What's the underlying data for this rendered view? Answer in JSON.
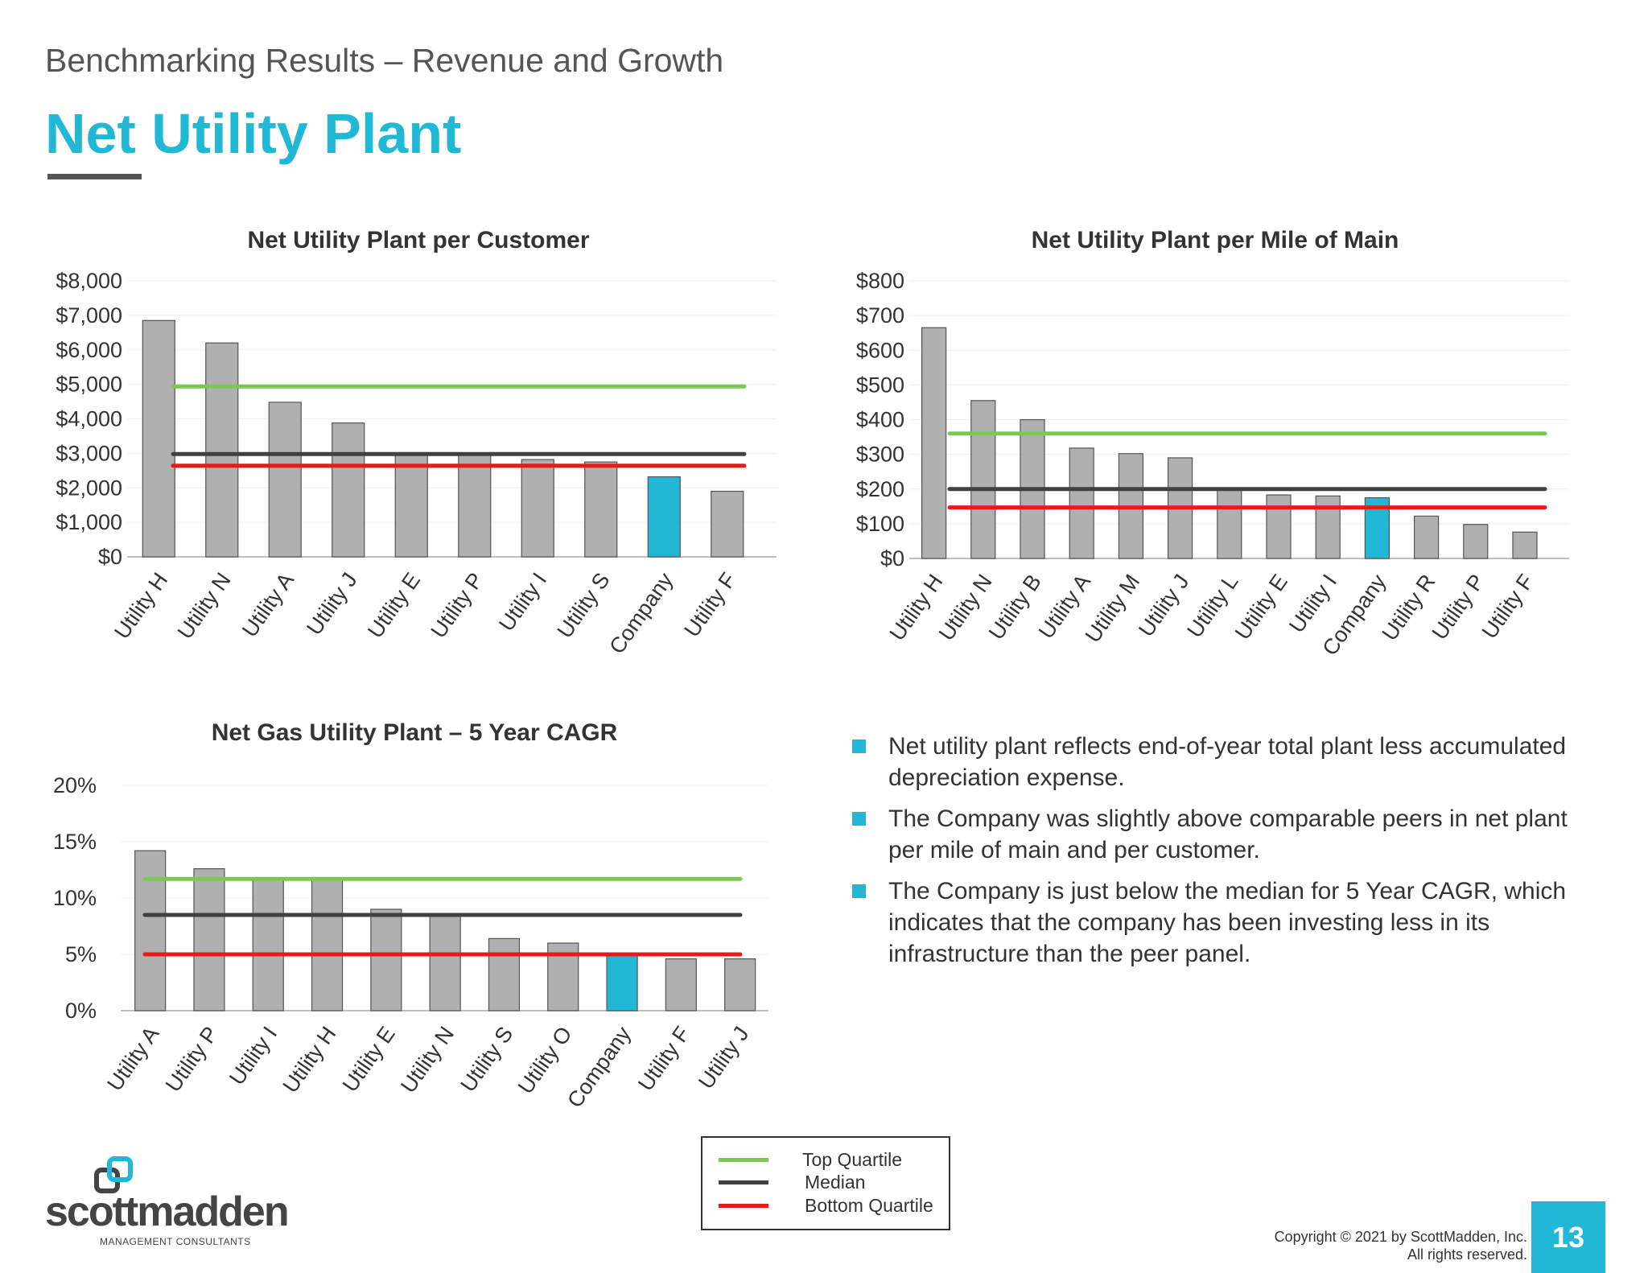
{
  "header": {
    "subtitle": "Benchmarking Results – Revenue and Growth",
    "title": "Net Utility Plant"
  },
  "colors": {
    "accent": "#20B8D4",
    "bar": "#B0B0B0",
    "highlight_bar": "#20B8D4",
    "top_quartile": "#7DC855",
    "median": "#404040",
    "bottom_quartile": "#E81B1B"
  },
  "chart_data": [
    {
      "type": "bar",
      "title": "Net Utility Plant per Customer",
      "categories": [
        "Utility H",
        "Utility N",
        "Utility A",
        "Utility J",
        "Utility E",
        "Utility P",
        "Utility I",
        "Utility S",
        "Company",
        "Utility F"
      ],
      "values": [
        6850,
        6200,
        4480,
        3880,
        3020,
        2980,
        2820,
        2750,
        2320,
        1900
      ],
      "highlight": "Company",
      "reference_lines": {
        "top_quartile": 4940,
        "median": 2980,
        "bottom_quartile": 2640
      },
      "ylim": [
        0,
        8000
      ],
      "yticks": [
        "$0",
        "$1,000",
        "$2,000",
        "$3,000",
        "$4,000",
        "$5,000",
        "$6,000",
        "$7,000",
        "$8,000"
      ],
      "xlabel": "",
      "ylabel": ""
    },
    {
      "type": "bar",
      "title": "Net Utility Plant per Mile of Main",
      "categories": [
        "Utility H",
        "Utility N",
        "Utility B",
        "Utility A",
        "Utility M",
        "Utility J",
        "Utility L",
        "Utility E",
        "Utility I",
        "Company",
        "Utility R",
        "Utility P",
        "Utility F"
      ],
      "values": [
        665,
        455,
        400,
        318,
        302,
        290,
        200,
        183,
        180,
        175,
        122,
        98,
        76
      ],
      "highlight": "Company",
      "reference_lines": {
        "top_quartile": 360,
        "median": 200,
        "bottom_quartile": 147
      },
      "ylim": [
        0,
        800
      ],
      "yticks": [
        "$0",
        "$100",
        "$200",
        "$300",
        "$400",
        "$500",
        "$600",
        "$700",
        "$800"
      ],
      "xlabel": "",
      "ylabel": ""
    },
    {
      "type": "bar",
      "title": "Net Gas Utility Plant – 5 Year CAGR",
      "categories": [
        "Utility A",
        "Utility P",
        "Utility I",
        "Utility H",
        "Utility E",
        "Utility N",
        "Utility S",
        "Utility O",
        "Company",
        "Utility F",
        "Utility J"
      ],
      "values": [
        14.2,
        12.6,
        11.8,
        11.7,
        9.0,
        8.6,
        6.4,
        6.0,
        5.0,
        4.6,
        4.6
      ],
      "highlight": "Company",
      "reference_lines": {
        "top_quartile": 11.7,
        "median": 8.5,
        "bottom_quartile": 5.0
      },
      "ylim": [
        0,
        20
      ],
      "yticks": [
        "0%",
        "5%",
        "10%",
        "15%",
        "20%"
      ],
      "xlabel": "",
      "ylabel": ""
    }
  ],
  "bullets": [
    "Net utility plant reflects end-of-year total plant less accumulated depreciation expense.",
    "The Company was slightly above comparable peers in net plant per mile of main and per customer.",
    "The Company is just below the median for 5 Year CAGR, which indicates that the company has been investing less in its infrastructure than the peer panel."
  ],
  "legend": {
    "top_quartile": "Top Quartile",
    "median": "Median",
    "bottom_quartile": "Bottom Quartile"
  },
  "footer": {
    "logo_text": "scottmadden",
    "logo_sub": "MANAGEMENT CONSULTANTS",
    "copyright_line1": "Copyright © 2021 by ScottMadden, Inc.",
    "copyright_line2": "All rights reserved.",
    "page_number": "13"
  }
}
